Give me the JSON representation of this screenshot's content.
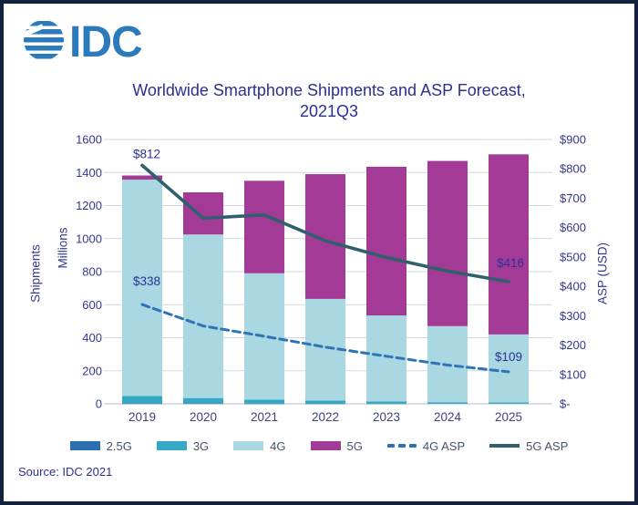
{
  "logo": {
    "text": "IDC"
  },
  "title": {
    "line1": "Worldwide Smartphone Shipments and ASP Forecast,",
    "line2": "2021Q3"
  },
  "source": "Source: IDC 2021",
  "axes": {
    "left": {
      "title_outer": "Shipments",
      "title_inner": "Millions",
      "ticks": [
        "0",
        "200",
        "400",
        "600",
        "800",
        "1000",
        "1200",
        "1400",
        "1600"
      ]
    },
    "right": {
      "title": "ASP (USD)",
      "ticks": [
        "$-",
        "$100",
        "$200",
        "$300",
        "$400",
        "$500",
        "$600",
        "$700",
        "$800",
        "$900"
      ]
    }
  },
  "legend": {
    "items": [
      {
        "label": "2.5G",
        "type": "bar",
        "color": "#2b6fb3"
      },
      {
        "label": "3G",
        "type": "bar",
        "color": "#35a9c3"
      },
      {
        "label": "4G",
        "type": "bar",
        "color": "#a9d7e2"
      },
      {
        "label": "5G",
        "type": "bar",
        "color": "#a33b96"
      },
      {
        "label": "4G ASP",
        "type": "dashed",
        "color": "#2e74b5"
      },
      {
        "label": "5G ASP",
        "type": "line",
        "color": "#30606e"
      }
    ]
  },
  "chart_data": {
    "type": "combo-stacked-bar-line",
    "title": "Worldwide Smartphone Shipments and ASP Forecast, 2021Q3",
    "categories": [
      "2019",
      "2020",
      "2021",
      "2022",
      "2023",
      "2024",
      "2025"
    ],
    "bar_series": [
      {
        "name": "2.5G",
        "color": "#2b6fb3",
        "values": [
          2,
          2,
          1,
          1,
          1,
          0,
          0
        ]
      },
      {
        "name": "3G",
        "color": "#35a9c3",
        "values": [
          45,
          33,
          24,
          19,
          14,
          10,
          8
        ]
      },
      {
        "name": "4G",
        "color": "#a9d7e2",
        "values": [
          1310,
          990,
          765,
          615,
          520,
          460,
          412
        ]
      },
      {
        "name": "5G",
        "color": "#a33b96",
        "values": [
          25,
          255,
          560,
          755,
          900,
          1000,
          1090
        ]
      }
    ],
    "line_series": [
      {
        "name": "4G ASP",
        "style": "dashed",
        "axis": "right",
        "color": "#2e74b5",
        "values": [
          338,
          265,
          230,
          193,
          162,
          132,
          109
        ]
      },
      {
        "name": "5G ASP",
        "style": "solid",
        "axis": "right",
        "color": "#30606e",
        "values": [
          812,
          632,
          643,
          555,
          498,
          452,
          416
        ]
      }
    ],
    "left_axis": {
      "label": "Shipments (Millions)",
      "min": 0,
      "max": 1600,
      "step": 200
    },
    "right_axis": {
      "label": "ASP (USD)",
      "min": 0,
      "max": 900,
      "step": 100
    },
    "grid": "horizontal",
    "legend_position": "bottom",
    "annotations": [
      {
        "text": "$812",
        "series": "5G ASP",
        "index": 0
      },
      {
        "text": "$338",
        "series": "4G ASP",
        "index": 0
      },
      {
        "text": "$416",
        "series": "5G ASP",
        "index": 6
      },
      {
        "text": "$109",
        "series": "4G ASP",
        "index": 6
      }
    ]
  },
  "colors": {
    "frame_border": "#13203e",
    "logo_blue": "#2b7abc",
    "title_text": "#2c2f90",
    "axis_text": "#34388c",
    "year_text": "#3d4380",
    "legend_text": "#44546a",
    "annotation_text": "#2c3192",
    "grid": "#d3d7e1",
    "axis_line": "#b7bdca"
  }
}
